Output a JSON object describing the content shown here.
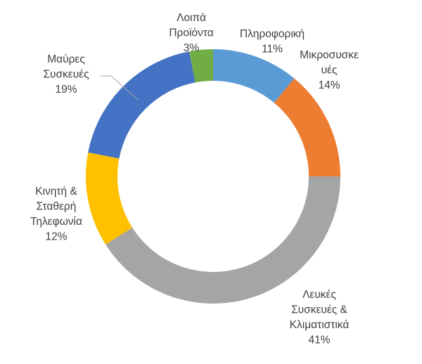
{
  "chart_data": {
    "type": "pie",
    "variant": "doughnut",
    "title": "",
    "legend": "none",
    "slices": [
      {
        "label": [
          "Πληροφορική"
        ],
        "value": 11,
        "pct": "11%",
        "color": "#5b9bd5"
      },
      {
        "label": [
          "Μικροσυσκε",
          "υές"
        ],
        "value": 14,
        "pct": "14%",
        "color": "#ed7d31"
      },
      {
        "label": [
          "Λευκές",
          "Συσκευές &",
          "Κλιματιστικά"
        ],
        "value": 41,
        "pct": "41%",
        "color": "#a5a5a5"
      },
      {
        "label": [
          "Κινητή &",
          "Σταθερή",
          "Τηλεφωνία"
        ],
        "value": 12,
        "pct": "12%",
        "color": "#ffc000"
      },
      {
        "label": [
          "Μαύρες",
          "Συσκευές"
        ],
        "value": 19,
        "pct": "19%",
        "color": "#4472c4"
      },
      {
        "label": [
          "Λοιπά",
          "Προϊόντα"
        ],
        "value": 3,
        "pct": "3%",
        "color": "#70ad47"
      }
    ]
  }
}
